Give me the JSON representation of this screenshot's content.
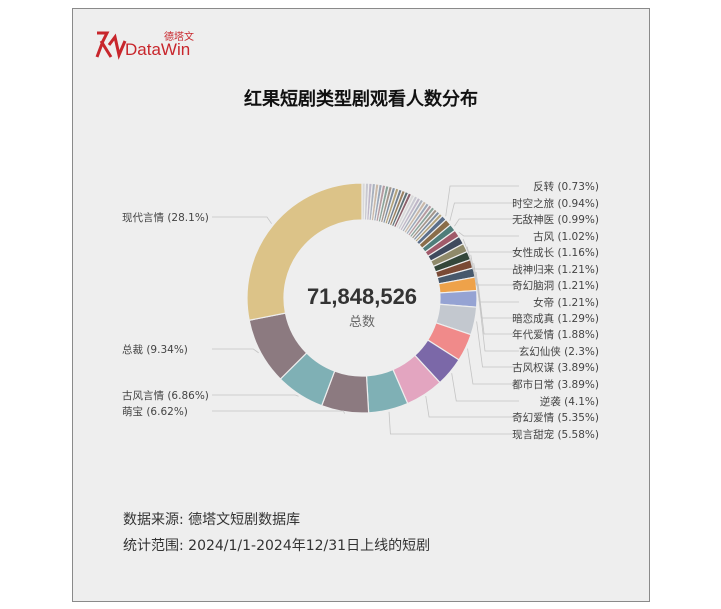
{
  "logo": {
    "cn": "德塔文",
    "en": "DataWin"
  },
  "title": "红果短剧类型剧观看人数分布",
  "chart_data": {
    "type": "pie",
    "style": "donut",
    "title": "红果短剧类型剧观看人数分布",
    "center_value": "71,848,526",
    "center_label": "总数",
    "unit": "%",
    "slices": [
      {
        "name": "反转",
        "value": 0.73,
        "color": "#5b6f8a"
      },
      {
        "name": "时空之旅",
        "value": 0.94,
        "color": "#8a6d4a"
      },
      {
        "name": "无敌神医",
        "value": 0.99,
        "color": "#4f7d7a"
      },
      {
        "name": "古风",
        "value": 1.02,
        "color": "#a05a6a"
      },
      {
        "name": "女性成长",
        "value": 1.16,
        "color": "#3f4a5e"
      },
      {
        "name": "战神归来",
        "value": 1.21,
        "color": "#8f8a6a"
      },
      {
        "name": "奇幻脑洞",
        "value": 1.21,
        "color": "#34473a"
      },
      {
        "name": "女帝",
        "value": 1.21,
        "color": "#7a4a35"
      },
      {
        "name": "暗恋成真",
        "value": 1.29,
        "color": "#47596c"
      },
      {
        "name": "年代爱情",
        "value": 1.88,
        "color": "#eea24a"
      },
      {
        "name": "玄幻仙侠",
        "value": 2.3,
        "color": "#95a3d3"
      },
      {
        "name": "古风权谋",
        "value": 3.89,
        "color": "#c3c8cf"
      },
      {
        "name": "都市日常",
        "value": 3.89,
        "color": "#f08a8a"
      },
      {
        "name": "逆袭",
        "value": 4.1,
        "color": "#7b68a8"
      },
      {
        "name": "奇幻爱情",
        "value": 5.35,
        "color": "#e3a5c0"
      },
      {
        "name": "现言甜宠",
        "value": 5.58,
        "color": "#7fb0b5"
      },
      {
        "name": "萌宝",
        "value": 6.62,
        "color": "#8c7a80"
      },
      {
        "name": "古风言情",
        "value": 6.86,
        "color": "#7fb0b5"
      },
      {
        "name": "总裁",
        "value": 9.34,
        "color": "#8c7a80"
      },
      {
        "name": "现代言情",
        "value": 28.1,
        "color": "#dcc388"
      }
    ],
    "unlabeled_small_slices_total": 12.33,
    "legend": "none (leader-line labels)"
  },
  "footer": {
    "source": "数据来源: 德塔文短剧数据库",
    "range": "统计范围:  2024/1/1-2024年12/31日上线的短剧"
  }
}
